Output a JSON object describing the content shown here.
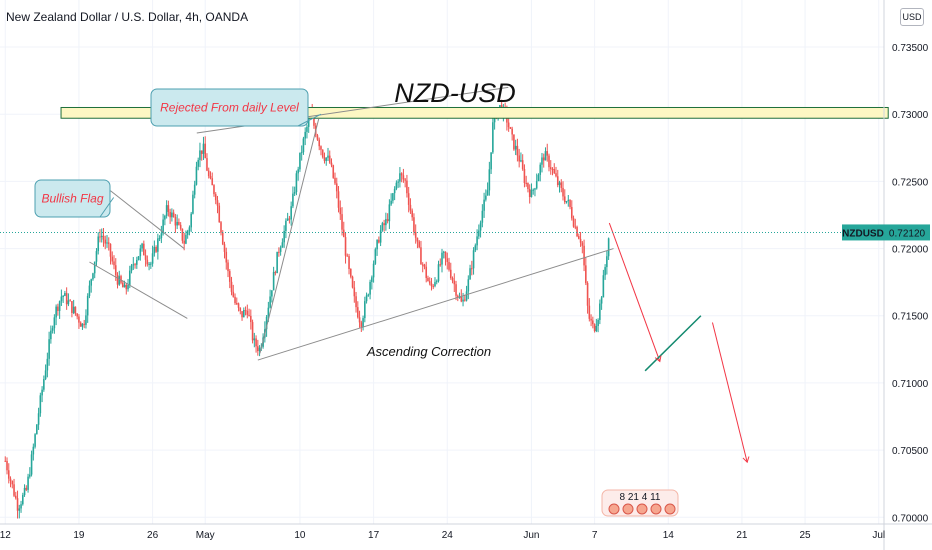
{
  "header": {
    "title": "New Zealand Dollar / U.S. Dollar, 4h, OANDA",
    "currency": "USD"
  },
  "chart_data": {
    "type": "candlestick",
    "title": "NZD-USD",
    "symbol": "NZDUSD",
    "last_price": "0.72120",
    "y_ticks": [
      "0.73500",
      "0.73000",
      "0.72500",
      "0.72000",
      "0.71500",
      "0.71000",
      "0.70500",
      "0.70000"
    ],
    "y_tick_values": [
      0.735,
      0.73,
      0.725,
      0.72,
      0.715,
      0.71,
      0.705,
      0.7
    ],
    "ylim": [
      0.6995,
      0.7385
    ],
    "x_ticks": [
      "12",
      "19",
      "26",
      "May",
      "10",
      "17",
      "24",
      "Jun",
      "7",
      "14",
      "21",
      "25",
      "Jul"
    ],
    "x_tick_days": [
      0,
      7,
      14,
      19,
      28,
      35,
      42,
      50,
      56,
      63,
      70,
      76,
      83
    ],
    "x_range_days": [
      -0.5,
      83.5
    ],
    "resistance_zone": [
      0.7297,
      0.7305
    ],
    "price_path": [
      [
        0.0,
        0.7042
      ],
      [
        0.6,
        0.7025
      ],
      [
        1.2,
        0.7008
      ],
      [
        2.0,
        0.702
      ],
      [
        2.6,
        0.7048
      ],
      [
        3.2,
        0.708
      ],
      [
        4.0,
        0.712
      ],
      [
        4.6,
        0.715
      ],
      [
        5.4,
        0.7166
      ],
      [
        6.0,
        0.716
      ],
      [
        6.8,
        0.715
      ],
      [
        7.4,
        0.7142
      ],
      [
        8.2,
        0.718
      ],
      [
        9.0,
        0.7212
      ],
      [
        9.8,
        0.72
      ],
      [
        10.6,
        0.7178
      ],
      [
        11.4,
        0.7168
      ],
      [
        12.2,
        0.719
      ],
      [
        13.0,
        0.72
      ],
      [
        13.8,
        0.7188
      ],
      [
        14.6,
        0.7208
      ],
      [
        15.4,
        0.723
      ],
      [
        16.2,
        0.722
      ],
      [
        17.0,
        0.7205
      ],
      [
        17.6,
        0.722
      ],
      [
        18.2,
        0.7268
      ],
      [
        18.8,
        0.7275
      ],
      [
        19.4,
        0.725
      ],
      [
        20.0,
        0.724
      ],
      [
        20.6,
        0.721
      ],
      [
        21.2,
        0.718
      ],
      [
        21.8,
        0.716
      ],
      [
        22.4,
        0.715
      ],
      [
        23.0,
        0.7155
      ],
      [
        23.6,
        0.713
      ],
      [
        24.2,
        0.7125
      ],
      [
        24.8,
        0.715
      ],
      [
        25.4,
        0.7175
      ],
      [
        26.0,
        0.72
      ],
      [
        26.6,
        0.7215
      ],
      [
        27.2,
        0.723
      ],
      [
        27.8,
        0.726
      ],
      [
        28.4,
        0.7282
      ],
      [
        29.0,
        0.73
      ],
      [
        29.6,
        0.7285
      ],
      [
        30.2,
        0.727
      ],
      [
        30.8,
        0.7265
      ],
      [
        31.4,
        0.7245
      ],
      [
        32.0,
        0.7215
      ],
      [
        32.6,
        0.7185
      ],
      [
        33.2,
        0.716
      ],
      [
        33.8,
        0.7145
      ],
      [
        34.4,
        0.7165
      ],
      [
        35.0,
        0.719
      ],
      [
        35.6,
        0.7212
      ],
      [
        36.2,
        0.722
      ],
      [
        36.8,
        0.7238
      ],
      [
        37.4,
        0.7255
      ],
      [
        38.0,
        0.725
      ],
      [
        38.6,
        0.7225
      ],
      [
        39.2,
        0.72
      ],
      [
        39.8,
        0.7185
      ],
      [
        40.4,
        0.717
      ],
      [
        41.0,
        0.718
      ],
      [
        41.6,
        0.7195
      ],
      [
        42.2,
        0.7185
      ],
      [
        42.8,
        0.717
      ],
      [
        43.4,
        0.7158
      ],
      [
        44.0,
        0.7175
      ],
      [
        44.6,
        0.72
      ],
      [
        45.2,
        0.7225
      ],
      [
        45.8,
        0.724
      ],
      [
        46.4,
        0.7298
      ],
      [
        47.0,
        0.7305
      ],
      [
        47.6,
        0.7298
      ],
      [
        48.2,
        0.728
      ],
      [
        48.8,
        0.7268
      ],
      [
        49.4,
        0.725
      ],
      [
        50.0,
        0.724
      ],
      [
        50.6,
        0.7255
      ],
      [
        51.2,
        0.727
      ],
      [
        51.8,
        0.7262
      ],
      [
        52.4,
        0.725
      ],
      [
        53.0,
        0.724
      ],
      [
        53.6,
        0.7232
      ],
      [
        54.2,
        0.7215
      ],
      [
        54.8,
        0.7205
      ],
      [
        55.4,
        0.715
      ],
      [
        55.9,
        0.714
      ],
      [
        56.4,
        0.7152
      ],
      [
        56.9,
        0.718
      ],
      [
        57.4,
        0.7212
      ]
    ]
  },
  "annotations": {
    "title_text": "NZD-USD",
    "rejected_label": "Rejected From daily Level",
    "bullish_flag_label": "Bullish Flag",
    "ascending_correction_label": "Ascending Correction",
    "events_label": "8 21 4 11"
  },
  "colors": {
    "bull": "#26a69a",
    "bear": "#ef5350",
    "zone_fill": "#fdf7c3",
    "zone_stroke": "#1e6e3a",
    "callout_fill": "#cbe9ee",
    "callout_stroke": "#4ea0b0",
    "projection": "#f23645",
    "wave": "#138a6f",
    "trendline": "#8c8c8c",
    "price_label": "#26a69a"
  }
}
